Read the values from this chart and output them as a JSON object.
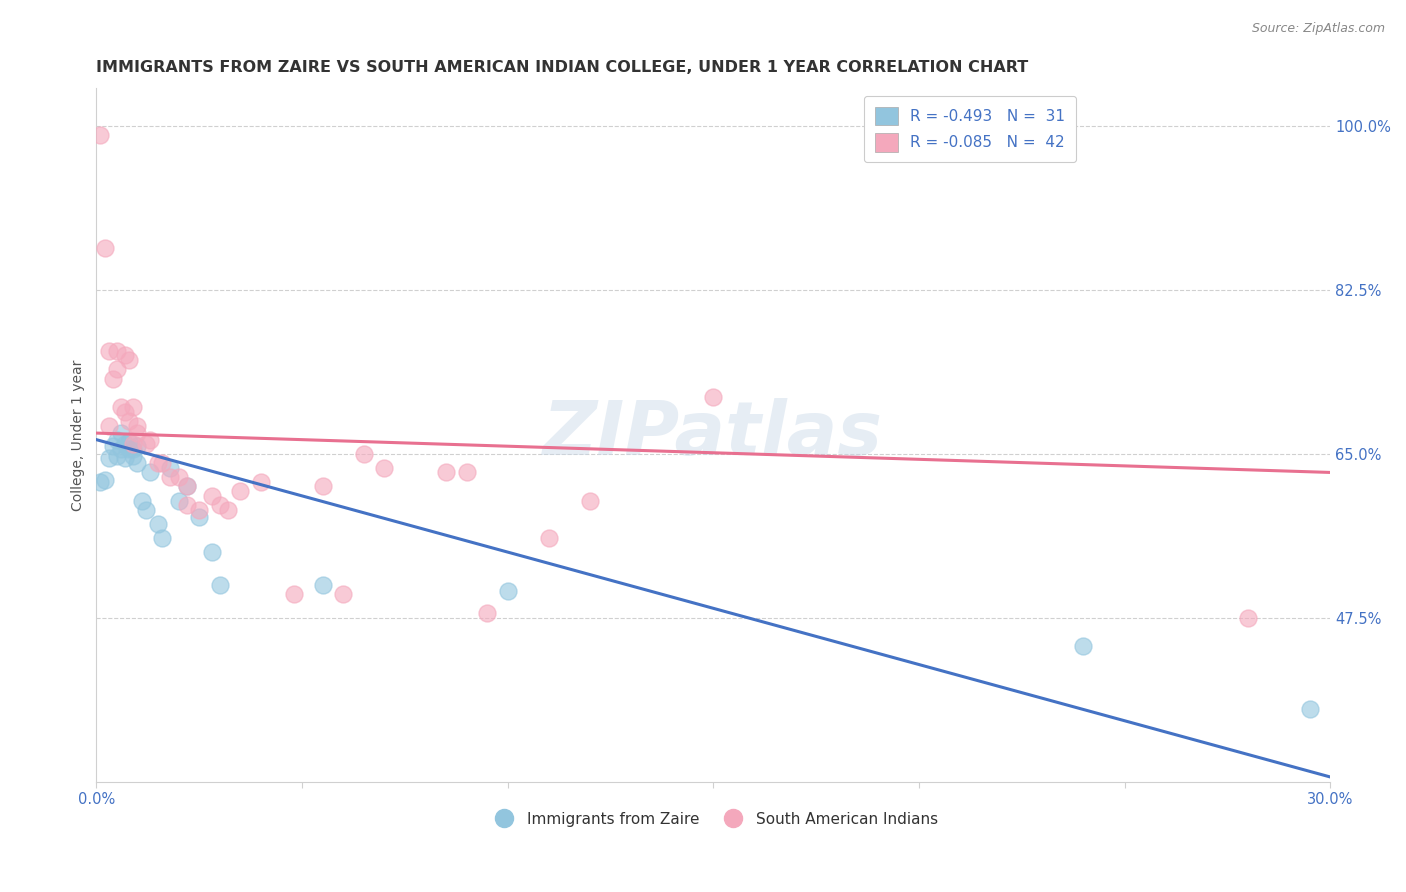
{
  "title": "IMMIGRANTS FROM ZAIRE VS SOUTH AMERICAN INDIAN COLLEGE, UNDER 1 YEAR CORRELATION CHART",
  "source": "Source: ZipAtlas.com",
  "ylabel": "College, Under 1 year",
  "xmin": 0.0,
  "xmax": 0.3,
  "ymin": 0.3,
  "ymax": 1.04,
  "yticks": [
    0.475,
    0.65,
    0.825,
    1.0
  ],
  "ytick_labels": [
    "47.5%",
    "65.0%",
    "82.5%",
    "100.0%"
  ],
  "xticks": [
    0.0,
    0.05,
    0.1,
    0.15,
    0.2,
    0.25,
    0.3
  ],
  "legend_labels": [
    "R = -0.493   N =  31",
    "R = -0.085   N =  42"
  ],
  "legend_bottom": [
    "Immigrants from Zaire",
    "South American Indians"
  ],
  "blue_color": "#92c5de",
  "pink_color": "#f4a8bc",
  "blue_line_color": "#4472c4",
  "pink_line_color": "#e87090",
  "label_color": "#4472c4",
  "grid_color": "#d0d0d0",
  "watermark": "ZIPatlas",
  "blue_trend_x": [
    0.0,
    0.3
  ],
  "blue_trend_y": [
    0.665,
    0.305
  ],
  "pink_trend_x": [
    0.0,
    0.3
  ],
  "pink_trend_y": [
    0.672,
    0.63
  ],
  "blue_points_x": [
    0.001,
    0.002,
    0.003,
    0.004,
    0.005,
    0.005,
    0.006,
    0.006,
    0.007,
    0.007,
    0.008,
    0.008,
    0.009,
    0.009,
    0.01,
    0.01,
    0.011,
    0.012,
    0.013,
    0.015,
    0.016,
    0.018,
    0.02,
    0.022,
    0.025,
    0.028,
    0.03,
    0.055,
    0.1,
    0.24,
    0.295
  ],
  "blue_points_y": [
    0.62,
    0.622,
    0.645,
    0.658,
    0.648,
    0.665,
    0.655,
    0.672,
    0.645,
    0.66,
    0.655,
    0.663,
    0.648,
    0.655,
    0.64,
    0.658,
    0.6,
    0.59,
    0.63,
    0.575,
    0.56,
    0.635,
    0.6,
    0.615,
    0.582,
    0.545,
    0.51,
    0.51,
    0.503,
    0.445,
    0.378
  ],
  "pink_points_x": [
    0.001,
    0.002,
    0.003,
    0.003,
    0.004,
    0.005,
    0.005,
    0.006,
    0.007,
    0.007,
    0.008,
    0.008,
    0.009,
    0.009,
    0.01,
    0.01,
    0.012,
    0.013,
    0.015,
    0.016,
    0.018,
    0.02,
    0.022,
    0.022,
    0.025,
    0.028,
    0.03,
    0.032,
    0.035,
    0.04,
    0.048,
    0.055,
    0.06,
    0.065,
    0.07,
    0.085,
    0.09,
    0.095,
    0.11,
    0.12,
    0.15,
    0.28
  ],
  "pink_points_y": [
    0.99,
    0.87,
    0.76,
    0.68,
    0.73,
    0.76,
    0.74,
    0.7,
    0.755,
    0.695,
    0.685,
    0.75,
    0.7,
    0.66,
    0.672,
    0.68,
    0.66,
    0.665,
    0.64,
    0.64,
    0.625,
    0.625,
    0.595,
    0.615,
    0.59,
    0.605,
    0.595,
    0.59,
    0.61,
    0.62,
    0.5,
    0.615,
    0.5,
    0.65,
    0.635,
    0.63,
    0.63,
    0.48,
    0.56,
    0.6,
    0.71,
    0.475
  ],
  "title_fontsize": 11.5,
  "axis_label_fontsize": 10,
  "tick_fontsize": 10.5,
  "legend_fontsize": 11,
  "source_fontsize": 9
}
